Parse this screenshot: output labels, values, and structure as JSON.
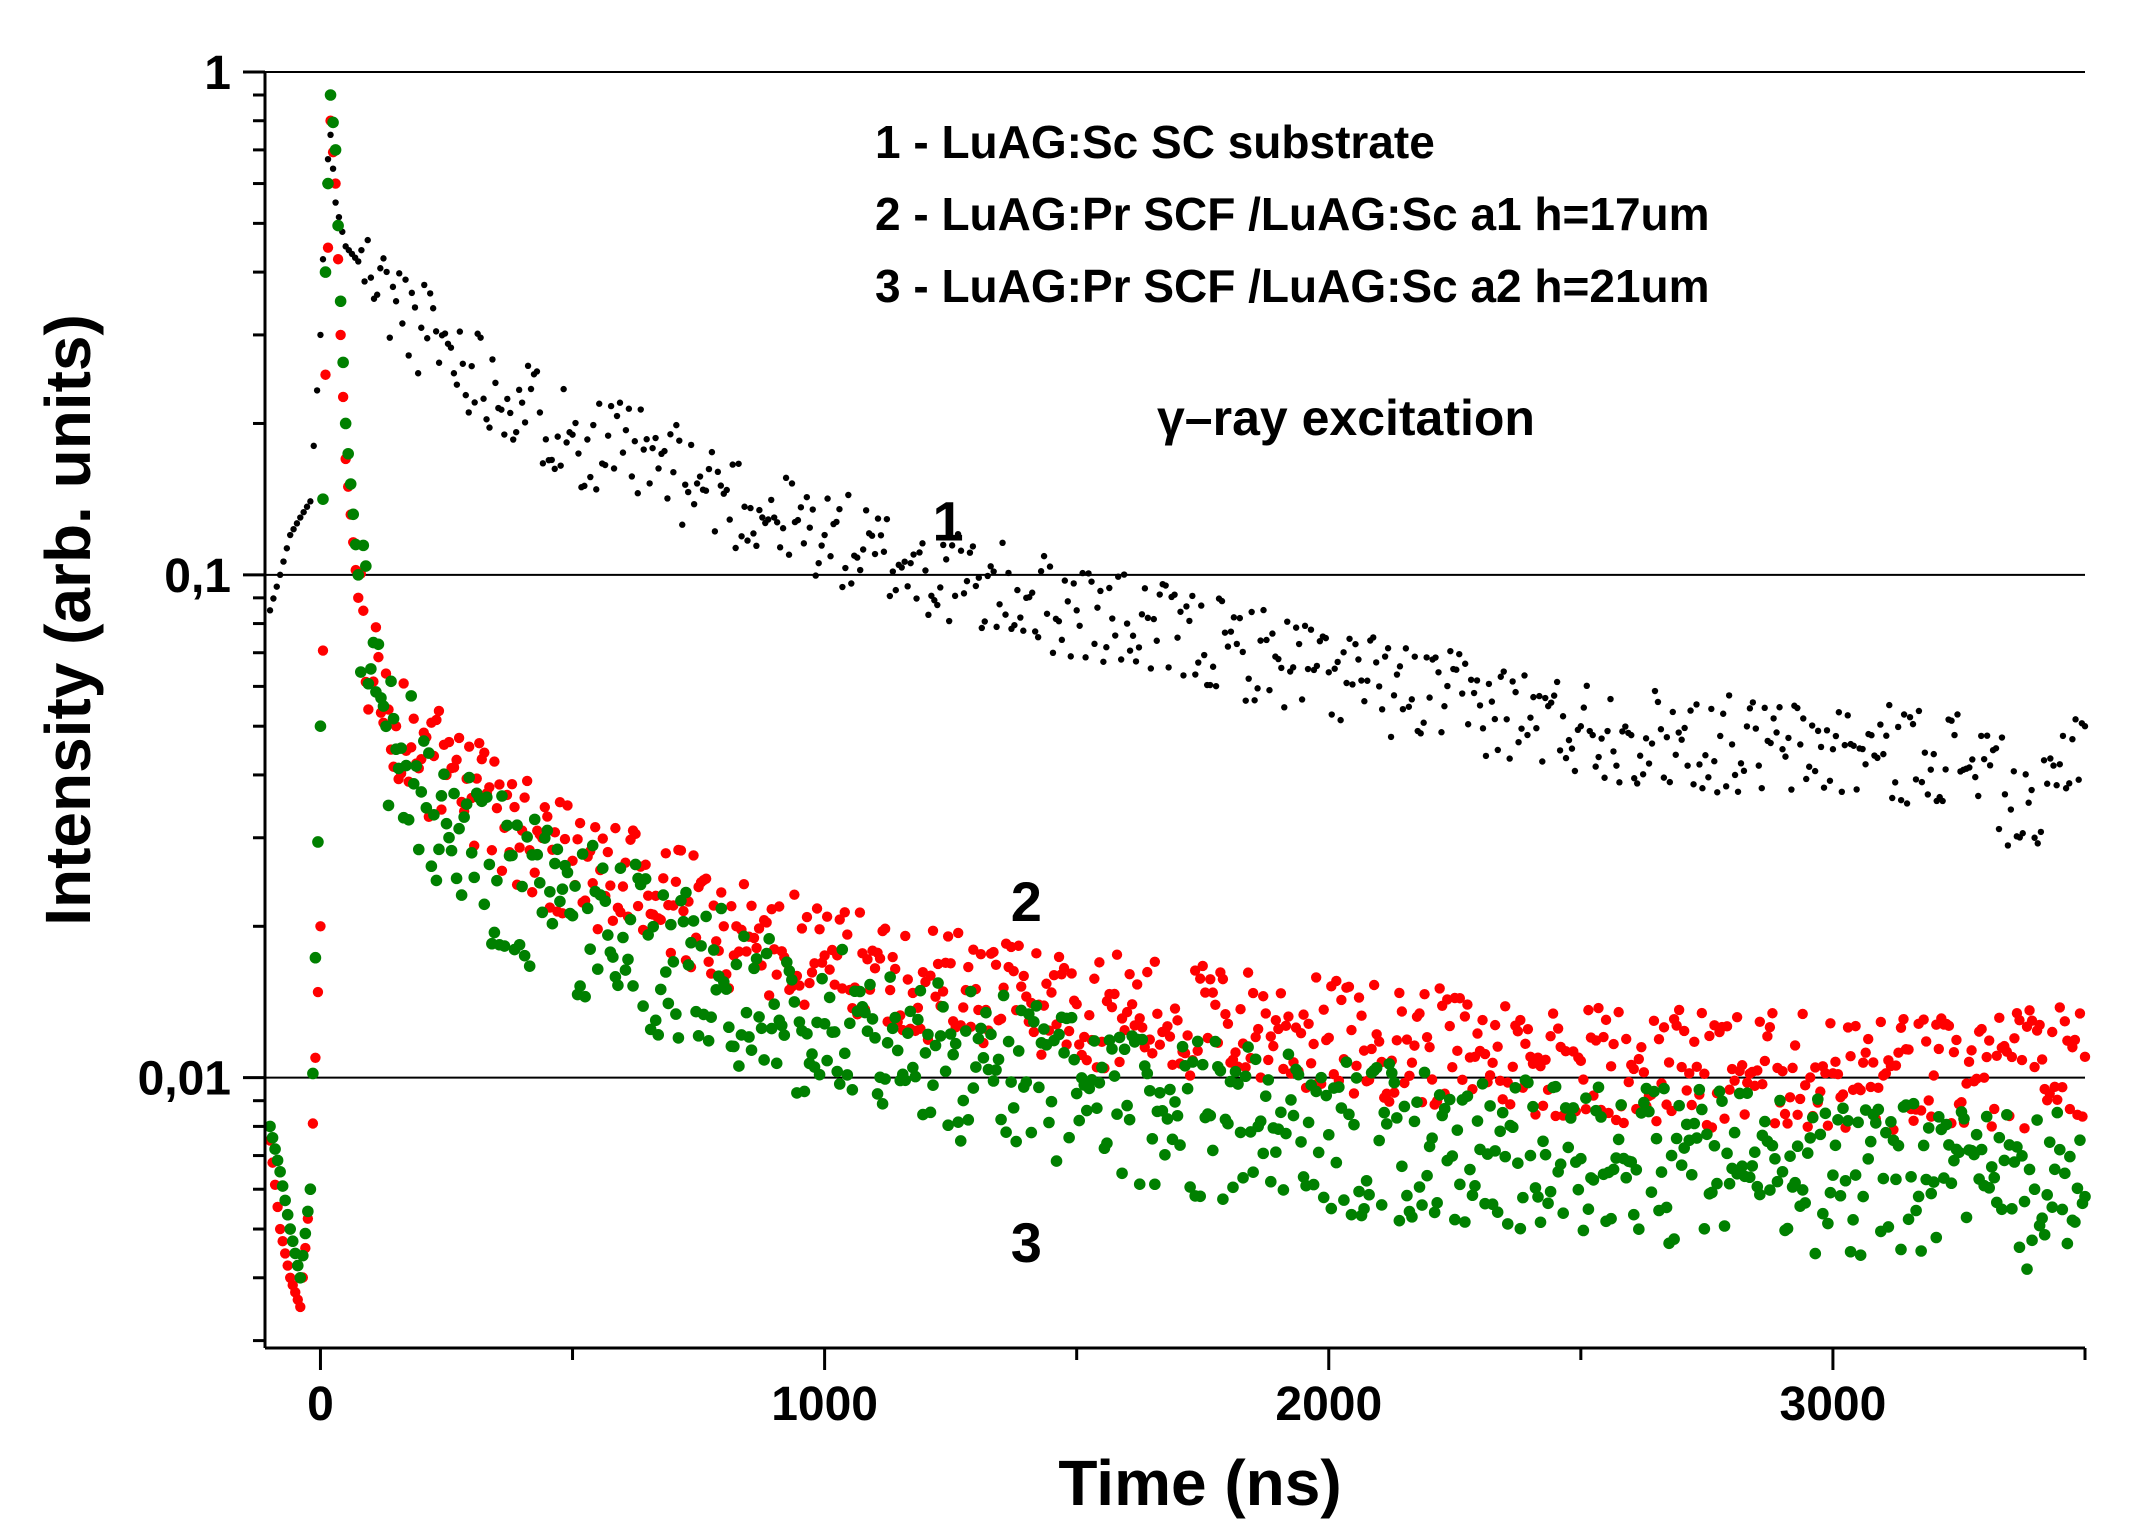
{
  "chart_data": {
    "type": "scatter",
    "xlabel": "Time (ns)",
    "ylabel": "Intensity (arb. units)",
    "xlim": [
      -110,
      3500
    ],
    "ylim": [
      0.0029,
      1.0
    ],
    "yscale": "log",
    "grid": "horizontal at y-ticks",
    "x_ticks": [
      {
        "value": 0,
        "label": "0"
      },
      {
        "value": 1000,
        "label": "1000"
      },
      {
        "value": 2000,
        "label": "2000"
      },
      {
        "value": 3000,
        "label": "3000"
      }
    ],
    "y_ticks": [
      {
        "value": 1,
        "label": "1"
      },
      {
        "value": 0.1,
        "label": "0,1"
      },
      {
        "value": 0.01,
        "label": "0,01"
      }
    ],
    "legend": {
      "placement": "top-right",
      "entries": [
        "1 - LuAG:Sc SC substrate",
        "2 - LuAG:Pr SCF /LuAG:Sc a1 h=17um",
        "3 - LuAG:Pr SCF /LuAG:Sc a2 h=21um"
      ]
    },
    "annotation": "γ–ray excitation",
    "series": [
      {
        "name": "1",
        "label": "1",
        "color": "#000000",
        "x": [
          -100,
          -80,
          -60,
          -40,
          -20,
          0,
          10,
          20,
          30,
          50,
          75,
          100,
          150,
          200,
          300,
          400,
          500,
          600,
          700,
          800,
          900,
          1000,
          1100,
          1200,
          1300,
          1400,
          1500,
          1600,
          1700,
          1800,
          1900,
          2000,
          2100,
          2200,
          2300,
          2400,
          2500,
          2600,
          2700,
          2800,
          2900,
          3000,
          3100,
          3200,
          3300,
          3400,
          3450,
          3500
        ],
        "y": [
          0.085,
          0.1,
          0.12,
          0.13,
          0.14,
          0.3,
          0.6,
          0.75,
          0.55,
          0.45,
          0.42,
          0.39,
          0.35,
          0.31,
          0.26,
          0.22,
          0.19,
          0.175,
          0.16,
          0.145,
          0.13,
          0.12,
          0.11,
          0.102,
          0.095,
          0.09,
          0.085,
          0.08,
          0.075,
          0.072,
          0.068,
          0.064,
          0.06,
          0.057,
          0.055,
          0.052,
          0.05,
          0.048,
          0.047,
          0.046,
          0.045,
          0.045,
          0.044,
          0.044,
          0.043,
          0.03,
          0.042,
          0.05
        ]
      },
      {
        "name": "2",
        "label": "2",
        "color": "#ff0000",
        "x": [
          -100,
          -80,
          -60,
          -40,
          -20,
          0,
          10,
          20,
          30,
          40,
          50,
          75,
          100,
          150,
          200,
          250,
          300,
          400,
          500,
          600,
          700,
          800,
          900,
          1000,
          1100,
          1200,
          1300,
          1400,
          1500,
          1600,
          1700,
          1800,
          1900,
          2000,
          2100,
          2200,
          2300,
          2400,
          2500,
          2600,
          2700,
          2800,
          2900,
          3000,
          3100,
          3200,
          3300,
          3400,
          3500
        ],
        "y": [
          0.0075,
          0.005,
          0.004,
          0.0035,
          0.006,
          0.02,
          0.25,
          0.8,
          0.6,
          0.3,
          0.17,
          0.09,
          0.065,
          0.05,
          0.043,
          0.04,
          0.036,
          0.031,
          0.027,
          0.024,
          0.022,
          0.02,
          0.018,
          0.0175,
          0.0165,
          0.0155,
          0.015,
          0.0145,
          0.014,
          0.0135,
          0.013,
          0.0128,
          0.0125,
          0.012,
          0.0118,
          0.0115,
          0.0113,
          0.011,
          0.0108,
          0.0106,
          0.0105,
          0.0104,
          0.0103,
          0.0102,
          0.0101,
          0.0101,
          0.01,
          0.0105,
          0.011
        ]
      },
      {
        "name": "3",
        "label": "3",
        "color": "#008000",
        "x": [
          -100,
          -80,
          -60,
          -40,
          -20,
          0,
          10,
          20,
          30,
          40,
          50,
          75,
          100,
          150,
          200,
          250,
          300,
          400,
          500,
          600,
          700,
          800,
          900,
          1000,
          1100,
          1200,
          1300,
          1400,
          1500,
          1600,
          1700,
          1800,
          1900,
          2000,
          2100,
          2200,
          2300,
          2400,
          2500,
          2600,
          2700,
          2800,
          2900,
          3000,
          3100,
          3200,
          3300,
          3400,
          3500
        ],
        "y": [
          0.008,
          0.0065,
          0.005,
          0.004,
          0.006,
          0.05,
          0.4,
          0.9,
          0.7,
          0.35,
          0.2,
          0.1,
          0.065,
          0.045,
          0.037,
          0.032,
          0.028,
          0.024,
          0.021,
          0.019,
          0.017,
          0.0155,
          0.014,
          0.0128,
          0.012,
          0.0112,
          0.0105,
          0.0098,
          0.0093,
          0.0088,
          0.0084,
          0.0081,
          0.0079,
          0.0077,
          0.0075,
          0.0073,
          0.0072,
          0.007,
          0.0069,
          0.0068,
          0.0067,
          0.0066,
          0.0065,
          0.0064,
          0.0063,
          0.0062,
          0.0061,
          0.006,
          0.0058
        ]
      }
    ]
  }
}
